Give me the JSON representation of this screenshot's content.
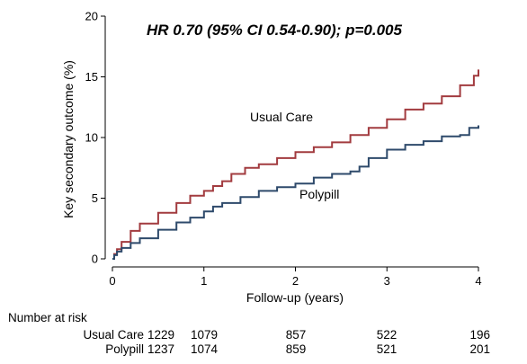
{
  "chart_data": {
    "type": "line",
    "chart_kind": "kaplan-meier cumulative incidence",
    "title": "",
    "annotation": "HR 0.70 (95% CI 0.54-0.90); p=0.005",
    "xlabel": "Follow-up (years)",
    "ylabel": "Key secondary outcome (%)",
    "xlim": [
      0,
      4
    ],
    "ylim": [
      0,
      20
    ],
    "x_ticks": [
      0,
      1,
      2,
      3,
      4
    ],
    "y_ticks": [
      0,
      5,
      10,
      15,
      20
    ],
    "grid": false,
    "legend": "none (series labeled directly on plot)",
    "series": [
      {
        "name": "Usual Care",
        "color": "#A23B3F",
        "step": true,
        "x": [
          0,
          0.02,
          0.05,
          0.1,
          0.2,
          0.3,
          0.5,
          0.7,
          0.85,
          1.0,
          1.1,
          1.2,
          1.3,
          1.45,
          1.6,
          1.8,
          2.0,
          2.2,
          2.4,
          2.6,
          2.8,
          3.0,
          3.2,
          3.4,
          3.6,
          3.8,
          3.95,
          4.0
        ],
        "values": [
          0,
          0.4,
          0.8,
          1.4,
          2.3,
          2.9,
          3.8,
          4.6,
          5.2,
          5.6,
          6.0,
          6.4,
          7.0,
          7.5,
          7.8,
          8.3,
          8.8,
          9.2,
          9.6,
          10.2,
          10.8,
          11.5,
          12.3,
          12.8,
          13.4,
          14.3,
          15.1,
          15.6
        ]
      },
      {
        "name": "Polypill",
        "color": "#2E4A6B",
        "step": true,
        "x": [
          0,
          0.02,
          0.05,
          0.1,
          0.2,
          0.3,
          0.5,
          0.7,
          0.85,
          1.0,
          1.1,
          1.2,
          1.4,
          1.6,
          1.8,
          2.0,
          2.2,
          2.4,
          2.6,
          2.7,
          2.8,
          3.0,
          3.2,
          3.4,
          3.6,
          3.8,
          3.9,
          4.0
        ],
        "values": [
          0,
          0.3,
          0.6,
          0.9,
          1.3,
          1.7,
          2.4,
          3.0,
          3.4,
          3.9,
          4.3,
          4.6,
          5.1,
          5.6,
          5.9,
          6.2,
          6.7,
          7.0,
          7.2,
          7.6,
          8.3,
          9.0,
          9.4,
          9.7,
          10.1,
          10.2,
          10.8,
          11.0
        ]
      }
    ],
    "series_labels": [
      "Usual Care",
      "Polypill"
    ],
    "risk_table": {
      "heading": "Number at risk",
      "timepoints": [
        0,
        1,
        2,
        3,
        4
      ],
      "rows": [
        {
          "label": "Usual Care",
          "values": [
            "1229",
            "1079",
            "857",
            "522",
            "196"
          ]
        },
        {
          "label": "Polypill",
          "values": [
            "1237",
            "1074",
            "859",
            "521",
            "201"
          ]
        }
      ]
    }
  }
}
